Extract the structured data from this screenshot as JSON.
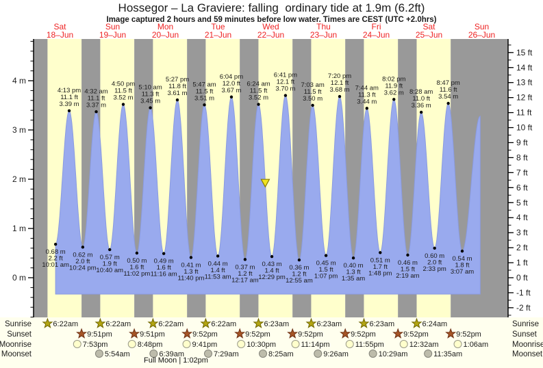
{
  "title": "Hossegor – La Graviere: falling  ordinary tide at 1.9m (6.2ft)",
  "subtitle": "Image captured 2 hours and 59 minutes before low water. Times are CEST (UTC +2.0hrs)",
  "colors": {
    "day_band": "#ffffcc",
    "night_band": "#999999",
    "tide_fill": "#99aaee",
    "tide_edge": "#8a9be0",
    "day_label": "#ee2222",
    "legend_bg": "#ffffee",
    "marker_fill": "#f0e420",
    "marker_edge": "#8a7d00",
    "sunrise_star_fill": "#b3a512",
    "sunrise_star_edge": "#6f6600",
    "sunset_star_fill": "#a65526",
    "sunset_star_edge": "#6e3014",
    "moonrise_fill": "#ffffcc",
    "moonrise_edge": "#999988",
    "moonset_fill": "#bdbcab",
    "moonset_edge": "#84847a",
    "axis": "#000000",
    "label_text": "#1a1a1a"
  },
  "chart_data": {
    "type": "area",
    "title": "Hossegor – La Graviere: falling ordinary tide at 1.9m (6.2ft)",
    "x_days": [
      {
        "weekday": "Sat",
        "date": "18–Jun"
      },
      {
        "weekday": "Sun",
        "date": "19–Jun"
      },
      {
        "weekday": "Mon",
        "date": "20–Jun"
      },
      {
        "weekday": "Tue",
        "date": "21–Jun"
      },
      {
        "weekday": "Wed",
        "date": "22–Jun"
      },
      {
        "weekday": "Thu",
        "date": "23–Jun"
      },
      {
        "weekday": "Fri",
        "date": "24–Jun"
      },
      {
        "weekday": "Sat",
        "date": "25–Jun"
      },
      {
        "weekday": "Sun",
        "date": "26–Jun"
      }
    ],
    "y_axis_left": {
      "unit": "m",
      "major_ticks": [
        0,
        1,
        2,
        3,
        4
      ],
      "minor_step": 0.2
    },
    "y_axis_right": {
      "unit": "ft",
      "min": -2,
      "max": 15,
      "minor_step": 0.5
    },
    "tide_events": [
      {
        "kind": "low",
        "time": "10:01 am",
        "t": 10.02,
        "height_m": 0.68,
        "label_m": "0.68 m",
        "label_ft": "2.2 ft"
      },
      {
        "kind": "high",
        "time": "4:13 pm",
        "t": 16.22,
        "height_m": 3.39,
        "label_m": "3.39 m",
        "label_ft": "11.1 ft"
      },
      {
        "kind": "low",
        "time": "10:24 pm",
        "t": 22.4,
        "height_m": 0.62,
        "label_m": "0.62 m",
        "label_ft": "2.0 ft"
      },
      {
        "kind": "high",
        "time": "4:32 am",
        "t": 28.53,
        "height_m": 3.37,
        "label_m": "3.37 m",
        "label_ft": "11.1 ft"
      },
      {
        "kind": "low",
        "time": "10:40 am",
        "t": 34.67,
        "height_m": 0.57,
        "label_m": "0.57 m",
        "label_ft": "1.9 ft"
      },
      {
        "kind": "high",
        "time": "4:50 pm",
        "t": 40.83,
        "height_m": 3.52,
        "label_m": "3.52 m",
        "label_ft": "11.5 ft"
      },
      {
        "kind": "low",
        "time": "11:02 pm",
        "t": 47.03,
        "height_m": 0.5,
        "label_m": "0.50 m",
        "label_ft": "1.6 ft"
      },
      {
        "kind": "high",
        "time": "5:10 am",
        "t": 53.17,
        "height_m": 3.45,
        "label_m": "3.45 m",
        "label_ft": "11.3 ft"
      },
      {
        "kind": "low",
        "time": "11:16 am",
        "t": 59.27,
        "height_m": 0.49,
        "label_m": "0.49 m",
        "label_ft": "1.6 ft"
      },
      {
        "kind": "high",
        "time": "5:27 pm",
        "t": 65.45,
        "height_m": 3.61,
        "label_m": "3.61 m",
        "label_ft": "11.8 ft"
      },
      {
        "kind": "low",
        "time": "11:40 pm",
        "t": 71.67,
        "height_m": 0.41,
        "label_m": "0.41 m",
        "label_ft": "1.3 ft"
      },
      {
        "kind": "high",
        "time": "5:47 am",
        "t": 77.78,
        "height_m": 3.51,
        "label_m": "3.51 m",
        "label_ft": "11.5 ft"
      },
      {
        "kind": "low",
        "time": "11:53 am",
        "t": 83.88,
        "height_m": 0.44,
        "label_m": "0.44 m",
        "label_ft": "1.4 ft"
      },
      {
        "kind": "high",
        "time": "6:04 pm",
        "t": 90.07,
        "height_m": 3.67,
        "label_m": "3.67 m",
        "label_ft": "12.0 ft"
      },
      {
        "kind": "low",
        "time": "12:17 am",
        "t": 96.28,
        "height_m": 0.37,
        "label_m": "0.37 m",
        "label_ft": "1.2 ft"
      },
      {
        "kind": "high",
        "time": "6:24 am",
        "t": 102.4,
        "height_m": 3.52,
        "label_m": "3.52 m",
        "label_ft": "11.5 ft"
      },
      {
        "kind": "low",
        "time": "12:29 pm",
        "t": 108.48,
        "height_m": 0.43,
        "label_m": "0.43 m",
        "label_ft": "1.4 ft"
      },
      {
        "kind": "high",
        "time": "6:41 pm",
        "t": 114.68,
        "height_m": 3.7,
        "label_m": "3.70 m",
        "label_ft": "12.1 ft"
      },
      {
        "kind": "low",
        "time": "12:55 am",
        "t": 120.92,
        "height_m": 0.36,
        "label_m": "0.36 m",
        "label_ft": "1.2 ft"
      },
      {
        "kind": "high",
        "time": "7:03 am",
        "t": 127.05,
        "height_m": 3.5,
        "label_m": "3.50 m",
        "label_ft": "11.5 ft"
      },
      {
        "kind": "low",
        "time": "1:07 pm",
        "t": 133.12,
        "height_m": 0.45,
        "label_m": "0.45 m",
        "label_ft": "1.5 ft"
      },
      {
        "kind": "high",
        "time": "7:20 pm",
        "t": 139.33,
        "height_m": 3.68,
        "label_m": "3.68 m",
        "label_ft": "12.1 ft"
      },
      {
        "kind": "low",
        "time": "1:35 am",
        "t": 145.58,
        "height_m": 0.4,
        "label_m": "0.40 m",
        "label_ft": "1.3 ft"
      },
      {
        "kind": "high",
        "time": "7:44 am",
        "t": 151.73,
        "height_m": 3.44,
        "label_m": "3.44 m",
        "label_ft": "11.3 ft"
      },
      {
        "kind": "low",
        "time": "1:48 pm",
        "t": 157.8,
        "height_m": 0.51,
        "label_m": "0.51 m",
        "label_ft": "1.7 ft"
      },
      {
        "kind": "high",
        "time": "8:02 pm",
        "t": 164.03,
        "height_m": 3.62,
        "label_m": "3.62 m",
        "label_ft": "11.9 ft"
      },
      {
        "kind": "low",
        "time": "2:19 am",
        "t": 170.32,
        "height_m": 0.46,
        "label_m": "0.46 m",
        "label_ft": "1.5 ft"
      },
      {
        "kind": "high",
        "time": "8:28 am",
        "t": 176.47,
        "height_m": 3.36,
        "label_m": "3.36 m",
        "label_ft": "11.0 ft"
      },
      {
        "kind": "low",
        "time": "2:33 pm",
        "t": 182.55,
        "height_m": 0.6,
        "label_m": "0.60 m",
        "label_ft": "2.0 ft"
      },
      {
        "kind": "high",
        "time": "8:47 pm",
        "t": 188.78,
        "height_m": 3.54,
        "label_m": "3.54 m",
        "label_ft": "11.6 ft"
      },
      {
        "kind": "low",
        "time": "3:07 am",
        "t": 195.12,
        "height_m": 0.54,
        "label_m": "0.54 m",
        "label_ft": "1.8 ft"
      }
    ],
    "curve_end": {
      "t": 203.3,
      "height_m": 3.28
    },
    "current_level_marker": {
      "t": 105.48,
      "height_m": 1.9
    }
  },
  "astro": {
    "rows": [
      "Sunrise",
      "Sunset",
      "Moonrise",
      "Moonset"
    ],
    "sunrise": [
      {
        "day": 0,
        "time": "6:22am",
        "t": 6.37
      },
      {
        "day": 1,
        "time": "6:22am",
        "t": 30.37
      },
      {
        "day": 2,
        "time": "6:22am",
        "t": 54.37
      },
      {
        "day": 3,
        "time": "6:22am",
        "t": 78.37
      },
      {
        "day": 4,
        "time": "6:23am",
        "t": 102.38
      },
      {
        "day": 5,
        "time": "6:23am",
        "t": 126.38
      },
      {
        "day": 6,
        "time": "6:23am",
        "t": 150.38
      },
      {
        "day": 7,
        "time": "6:24am",
        "t": 174.4
      }
    ],
    "sunset": [
      {
        "day": 0,
        "time": "9:51pm",
        "t": 21.85
      },
      {
        "day": 1,
        "time": "9:51pm",
        "t": 45.85
      },
      {
        "day": 2,
        "time": "9:52pm",
        "t": 69.87
      },
      {
        "day": 3,
        "time": "9:52pm",
        "t": 93.87
      },
      {
        "day": 4,
        "time": "9:52pm",
        "t": 117.87
      },
      {
        "day": 5,
        "time": "9:52pm",
        "t": 141.87
      },
      {
        "day": 6,
        "time": "9:52pm",
        "t": 165.87
      },
      {
        "day": 7,
        "time": "9:52pm",
        "t": 189.87
      }
    ],
    "moonrise": [
      {
        "day": 0,
        "time": "7:53pm",
        "t": 19.88
      },
      {
        "day": 1,
        "time": "8:48pm",
        "t": 44.8
      },
      {
        "day": 2,
        "time": "9:41pm",
        "t": 69.68
      },
      {
        "day": 3,
        "time": "10:30pm",
        "t": 94.5
      },
      {
        "day": 4,
        "time": "11:14pm",
        "t": 119.23
      },
      {
        "day": 5,
        "time": "11:55pm",
        "t": 143.92
      },
      {
        "day": 7,
        "time": "12:32am",
        "t": 168.53
      },
      {
        "day": 8,
        "time": "1:06am",
        "t": 193.1
      }
    ],
    "moonset": [
      {
        "day": 1,
        "time": "5:54am",
        "t": 29.9
      },
      {
        "day": 2,
        "time": "6:39am",
        "t": 54.65
      },
      {
        "day": 3,
        "time": "7:29am",
        "t": 79.48
      },
      {
        "day": 4,
        "time": "8:25am",
        "t": 104.42
      },
      {
        "day": 5,
        "time": "9:26am",
        "t": 129.43
      },
      {
        "day": 6,
        "time": "10:29am",
        "t": 154.48
      },
      {
        "day": 7,
        "time": "11:35am",
        "t": 179.58
      }
    ],
    "full_moon_label": "Full Moon | 1:02pm"
  }
}
